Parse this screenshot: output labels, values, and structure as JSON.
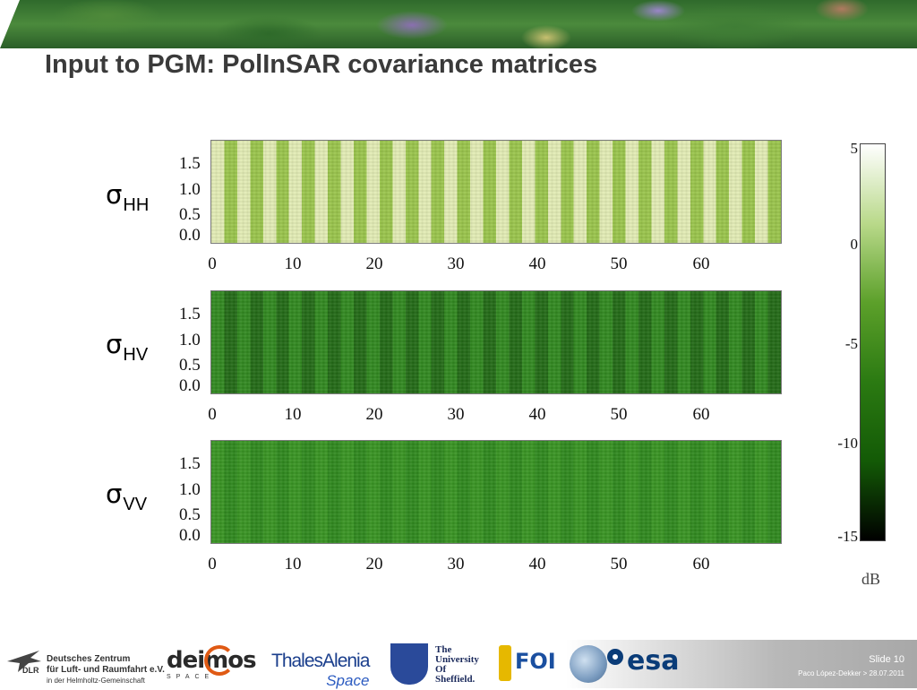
{
  "slide": {
    "title": "Input to PGM: PolInSAR covariance matrices",
    "slide_number": "Slide 10",
    "presenter": "Paco López-Dekker > 28.07.2011"
  },
  "panels": [
    {
      "symbol": "σ",
      "subscript": "HH",
      "base_color": "#9cc94a",
      "stripe_color": "#e8f2b8"
    },
    {
      "symbol": "σ",
      "subscript": "HV",
      "base_color": "#1f6a12",
      "stripe_color": "#2e8a1c"
    },
    {
      "symbol": "σ",
      "subscript": "VV",
      "base_color": "#2c8a1a",
      "stripe_color": "#36961f"
    }
  ],
  "y_tick_labels": [
    "1.5",
    "1.0",
    "0.5",
    "0.0"
  ],
  "x_tick_labels": [
    "0",
    "10",
    "20",
    "30",
    "40",
    "50",
    "60"
  ],
  "colorbar": {
    "tick_labels": [
      "5",
      "0",
      "-5",
      "-10",
      "-15"
    ],
    "unit": "dB"
  },
  "footer_logos": {
    "dlr": [
      "Deutsches Zentrum",
      "für Luft- und Raumfahrt e.V.",
      "in der Helmholtz-Gemeinschaft"
    ],
    "dlr_abbr": "DLR",
    "deimos": "deimos",
    "deimos_sub": "SPACE",
    "thales": "ThalesAlenia",
    "thales_sub": "Space",
    "sheffield": [
      "The",
      "University",
      "Of",
      "Sheffield."
    ],
    "foi": "FOI",
    "esa": "esa"
  }
}
